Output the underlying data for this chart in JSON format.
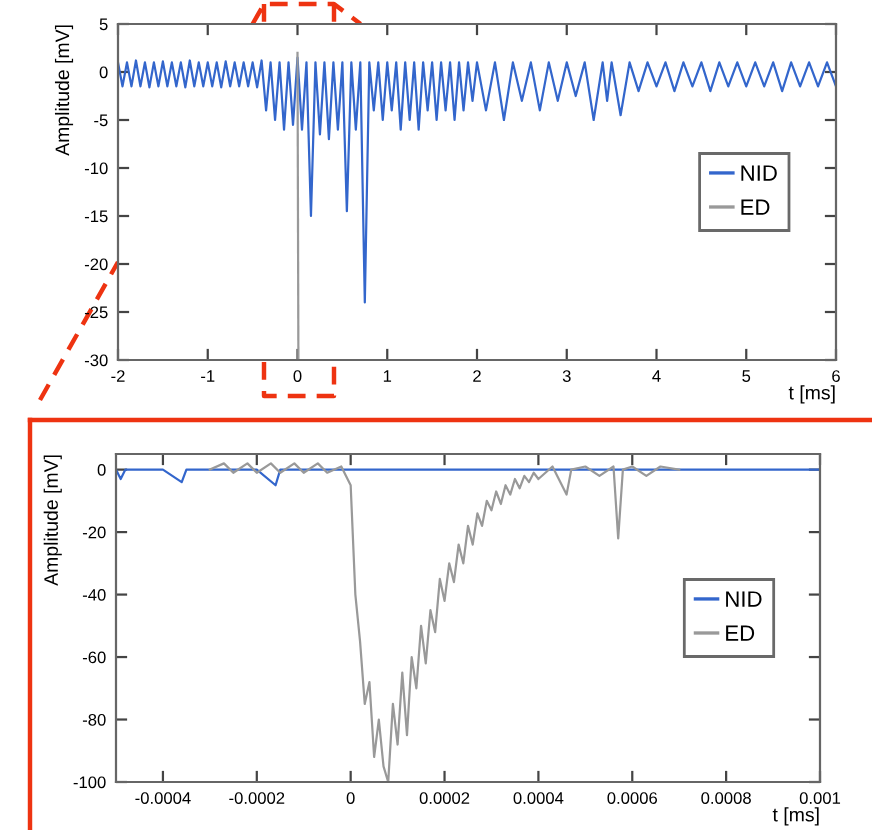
{
  "chart_data": [
    {
      "type": "line",
      "xlabel": "t [ms]",
      "ylabel": "Amplitude [mV]",
      "xlim": [
        -2,
        6
      ],
      "ylim": [
        -30,
        5
      ],
      "xticks": [
        -2,
        -1,
        0,
        1,
        2,
        3,
        4,
        5,
        6
      ],
      "yticks": [
        -30,
        -25,
        -20,
        -15,
        -10,
        -5,
        0,
        5
      ],
      "grid": false,
      "legend": "right",
      "series": [
        {
          "name": "NID",
          "color": "#3366cc",
          "x": [
            -2,
            -1.95,
            -1.9,
            -1.85,
            -1.8,
            -1.75,
            -1.7,
            -1.65,
            -1.6,
            -1.55,
            -1.5,
            -1.45,
            -1.4,
            -1.35,
            -1.3,
            -1.25,
            -1.2,
            -1.15,
            -1.1,
            -1.05,
            -1,
            -0.95,
            -0.9,
            -0.85,
            -0.8,
            -0.75,
            -0.7,
            -0.65,
            -0.6,
            -0.55,
            -0.5,
            -0.45,
            -0.4,
            -0.35,
            -0.3,
            -0.25,
            -0.2,
            -0.15,
            -0.1,
            -0.05,
            0,
            0.05,
            0.1,
            0.15,
            0.2,
            0.25,
            0.3,
            0.35,
            0.4,
            0.45,
            0.5,
            0.55,
            0.6,
            0.65,
            0.7,
            0.75,
            0.8,
            0.85,
            0.9,
            0.95,
            1,
            1.05,
            1.1,
            1.15,
            1.2,
            1.25,
            1.3,
            1.35,
            1.4,
            1.45,
            1.5,
            1.55,
            1.6,
            1.65,
            1.7,
            1.75,
            1.8,
            1.85,
            1.9,
            1.95,
            2,
            2.1,
            2.2,
            2.3,
            2.4,
            2.5,
            2.6,
            2.7,
            2.8,
            2.9,
            3,
            3.1,
            3.2,
            3.3,
            3.4,
            3.45,
            3.5,
            3.6,
            3.7,
            3.8,
            3.9,
            4,
            4.1,
            4.2,
            4.3,
            4.4,
            4.5,
            4.6,
            4.7,
            4.8,
            4.9,
            5,
            5.1,
            5.2,
            5.3,
            5.4,
            5.5,
            5.6,
            5.7,
            5.8,
            5.9,
            6
          ],
          "values": [
            1,
            -1.5,
            1,
            -1.5,
            1.2,
            -1.5,
            1,
            -1.6,
            1,
            -1.5,
            1.1,
            -1.5,
            1,
            -1.5,
            1,
            -1.6,
            1.2,
            -1.5,
            1,
            -1.5,
            1,
            -1.5,
            1,
            -1.6,
            1.1,
            -1.5,
            1,
            -1.5,
            1,
            -1.5,
            1,
            -1.6,
            1.2,
            -4,
            1,
            -5,
            1,
            -6,
            1,
            -5.5,
            1.5,
            -6,
            1,
            -15,
            1,
            -6.5,
            1,
            -7,
            1,
            -6,
            1,
            -14.5,
            1,
            -6,
            1,
            -24,
            1,
            -4,
            1,
            -5,
            1,
            -4,
            1,
            -6,
            1,
            -5,
            1,
            -6,
            1,
            -4,
            1,
            -5,
            1,
            -4,
            1,
            -5,
            1,
            -4,
            1,
            -3,
            1,
            -4,
            1,
            -5,
            1,
            -3,
            1,
            -4,
            1,
            -3,
            1,
            -2.5,
            1,
            -5,
            1,
            -3,
            1,
            -4.5,
            1,
            -2,
            1,
            -1.5,
            1,
            -2,
            1,
            -1.5,
            1,
            -2,
            1,
            -1.5,
            1,
            -1.5,
            1,
            -1.5,
            1,
            -2,
            1,
            -1.5,
            1,
            -1.5,
            1,
            -1.5
          ]
        },
        {
          "name": "ED",
          "color": "#999999",
          "x": [
            0,
            0.01
          ],
          "values": [
            2,
            -30
          ]
        }
      ]
    },
    {
      "type": "line",
      "xlabel": "t [ms]",
      "ylabel": "Amplitude [mV]",
      "xlim": [
        -0.0005,
        0.001
      ],
      "ylim": [
        -100,
        5
      ],
      "xticks": [
        -0.0004,
        -0.0002,
        0,
        0.0002,
        0.0004,
        0.0006,
        0.0008,
        0.001
      ],
      "yticks": [
        -100,
        -80,
        -60,
        -40,
        -20,
        0
      ],
      "grid": false,
      "legend": "right",
      "series": [
        {
          "name": "NID",
          "color": "#3366cc",
          "x": [
            -0.0005,
            -0.00049,
            -0.00048,
            -0.0004,
            -0.00036,
            -0.00035,
            -0.0003,
            -0.0002,
            -0.00016,
            -0.00015,
            -0.0001,
            0,
            0.0001,
            0.0002,
            0.0003,
            0.0004,
            0.0005,
            0.0006,
            0.0007,
            0.0008,
            0.0009,
            0.001
          ],
          "values": [
            0,
            -3,
            0,
            0,
            -4,
            0,
            0,
            0,
            -5,
            0,
            0,
            0,
            0,
            0,
            0,
            0,
            0,
            0,
            0,
            0,
            0,
            0
          ]
        },
        {
          "name": "ED",
          "color": "#999999",
          "x": [
            -0.0003,
            -0.00027,
            -0.00025,
            -0.00022,
            -0.0002,
            -0.00017,
            -0.00015,
            -0.00012,
            -0.0001,
            -7e-05,
            -5e-05,
            -2e-05,
            0,
            1e-05,
            2e-05,
            3e-05,
            4e-05,
            5e-05,
            6e-05,
            7e-05,
            8e-05,
            9e-05,
            0.0001,
            0.00011,
            0.00012,
            0.00013,
            0.00014,
            0.00015,
            0.00016,
            0.00017,
            0.00018,
            0.00019,
            0.0002,
            0.00021,
            0.00022,
            0.00023,
            0.00024,
            0.00025,
            0.00026,
            0.00027,
            0.00028,
            0.00029,
            0.0003,
            0.00031,
            0.00032,
            0.00033,
            0.00034,
            0.00035,
            0.00036,
            0.00037,
            0.00038,
            0.00039,
            0.0004,
            0.00043,
            0.00046,
            0.00047,
            0.0005,
            0.00053,
            0.00056,
            0.00057,
            0.00058,
            0.0006,
            0.00063,
            0.00066,
            0.0007
          ],
          "values": [
            0,
            2,
            -1,
            2,
            -1,
            2,
            -1,
            2,
            -1,
            2,
            -1,
            1,
            -5,
            -40,
            -55,
            -75,
            -68,
            -92,
            -80,
            -95,
            -100,
            -75,
            -88,
            -65,
            -85,
            -60,
            -70,
            -50,
            -62,
            -45,
            -52,
            -35,
            -42,
            -30,
            -36,
            -24,
            -30,
            -18,
            -24,
            -14,
            -18,
            -10,
            -13,
            -7,
            -11,
            -5,
            -8,
            -3,
            -6,
            -2,
            -4,
            -1,
            -3,
            1,
            -8,
            0,
            1,
            -2,
            1,
            -22,
            0,
            1,
            -2,
            1,
            0
          ]
        }
      ]
    }
  ]
}
